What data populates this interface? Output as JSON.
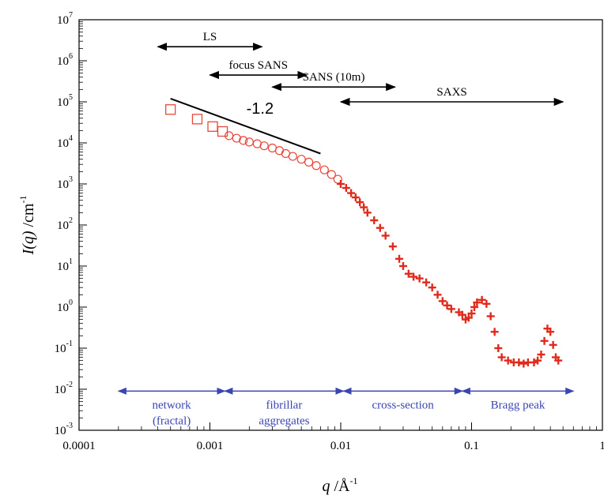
{
  "chart_data": {
    "type": "scatter",
    "xscale": "log",
    "yscale": "log",
    "xlim": [
      0.0001,
      1
    ],
    "ylim": [
      0.001,
      10000000
    ],
    "x_ticks": [
      {
        "value": 0.0001,
        "label": "0.0001"
      },
      {
        "value": 0.001,
        "label": "0.001"
      },
      {
        "value": 0.01,
        "label": "0.01"
      },
      {
        "value": 0.1,
        "label": "0.1"
      },
      {
        "value": 1,
        "label": "1"
      }
    ],
    "y_ticks": [
      {
        "value": 0.001,
        "base": "10",
        "exp": "-3"
      },
      {
        "value": 0.01,
        "base": "10",
        "exp": "-2"
      },
      {
        "value": 0.1,
        "base": "10",
        "exp": "-1"
      },
      {
        "value": 1,
        "base": "10",
        "exp": "0"
      },
      {
        "value": 10,
        "base": "10",
        "exp": "1"
      },
      {
        "value": 100,
        "base": "10",
        "exp": "2"
      },
      {
        "value": 1000,
        "base": "10",
        "exp": "3"
      },
      {
        "value": 10000,
        "base": "10",
        "exp": "4"
      },
      {
        "value": 100000,
        "base": "10",
        "exp": "5"
      },
      {
        "value": 1000000,
        "base": "10",
        "exp": "6"
      },
      {
        "value": 10000000,
        "base": "10",
        "exp": "7"
      }
    ],
    "xlabel": {
      "main": "q",
      "unit": " /Å",
      "exp": "-1"
    },
    "ylabel": {
      "main": "I(q)",
      "unit": " /cm",
      "exp": "-1"
    },
    "series": [
      {
        "marker": "square",
        "color": "#e8483c",
        "points": [
          [
            0.0005,
            65000
          ],
          [
            0.0008,
            38000
          ],
          [
            0.00105,
            25000
          ],
          [
            0.00125,
            19000
          ]
        ]
      },
      {
        "marker": "circle",
        "color": "#e8483c",
        "points": [
          [
            0.0014,
            15000
          ],
          [
            0.0016,
            13000
          ],
          [
            0.0018,
            11500
          ],
          [
            0.002,
            10500
          ],
          [
            0.0023,
            9500
          ],
          [
            0.0026,
            8500
          ],
          [
            0.003,
            7500
          ],
          [
            0.0034,
            6500
          ],
          [
            0.0038,
            5500
          ],
          [
            0.0043,
            4700
          ],
          [
            0.005,
            4000
          ],
          [
            0.0057,
            3400
          ],
          [
            0.0065,
            2800
          ],
          [
            0.0075,
            2200
          ],
          [
            0.0085,
            1700
          ],
          [
            0.0095,
            1300
          ]
        ]
      },
      {
        "marker": "cross",
        "color": "#e02a1c",
        "points": [
          [
            0.01,
            1000
          ],
          [
            0.011,
            800
          ],
          [
            0.012,
            600
          ],
          [
            0.013,
            470
          ],
          [
            0.014,
            360
          ],
          [
            0.015,
            270
          ],
          [
            0.016,
            200
          ],
          [
            0.018,
            130
          ],
          [
            0.02,
            85
          ],
          [
            0.022,
            55
          ],
          [
            0.025,
            30
          ],
          [
            0.028,
            15
          ],
          [
            0.03,
            10
          ],
          [
            0.033,
            6.5
          ],
          [
            0.036,
            5.5
          ],
          [
            0.04,
            5
          ],
          [
            0.045,
            4
          ],
          [
            0.05,
            3
          ],
          [
            0.055,
            2
          ],
          [
            0.06,
            1.4
          ],
          [
            0.065,
            1.1
          ],
          [
            0.07,
            0.9
          ],
          [
            0.08,
            0.75
          ],
          [
            0.085,
            0.65
          ],
          [
            0.09,
            0.5
          ],
          [
            0.095,
            0.55
          ],
          [
            0.1,
            0.7
          ],
          [
            0.105,
            1.0
          ],
          [
            0.11,
            1.3
          ],
          [
            0.12,
            1.5
          ],
          [
            0.13,
            1.2
          ],
          [
            0.14,
            0.6
          ],
          [
            0.15,
            0.25
          ],
          [
            0.16,
            0.1
          ],
          [
            0.17,
            0.06
          ],
          [
            0.19,
            0.05
          ],
          [
            0.21,
            0.045
          ],
          [
            0.23,
            0.045
          ],
          [
            0.25,
            0.042
          ],
          [
            0.27,
            0.045
          ],
          [
            0.3,
            0.045
          ],
          [
            0.32,
            0.05
          ],
          [
            0.34,
            0.07
          ],
          [
            0.36,
            0.15
          ],
          [
            0.38,
            0.3
          ],
          [
            0.4,
            0.25
          ],
          [
            0.42,
            0.12
          ],
          [
            0.44,
            0.06
          ],
          [
            0.46,
            0.05
          ]
        ]
      }
    ],
    "slope_line": {
      "from": [
        0.0005,
        120000
      ],
      "to": [
        0.007,
        5500
      ],
      "label": "-1.2",
      "label_at": [
        0.0019,
        51000
      ]
    },
    "technique_ranges": [
      {
        "label": "LS",
        "from": 0.0004,
        "to": 0.0025,
        "y": 2200000
      },
      {
        "label": "focus SANS",
        "from": 0.001,
        "to": 0.0055,
        "y": 450000
      },
      {
        "label": "SANS (10m)",
        "from": 0.003,
        "to": 0.026,
        "y": 230000
      },
      {
        "label": "SAXS",
        "from": 0.01,
        "to": 0.5,
        "y": 100000
      }
    ],
    "regions": [
      {
        "label": "network",
        "label2": "(fractal)",
        "from": 0.0002,
        "to": 0.0013
      },
      {
        "label": "fibrillar",
        "label2": "aggregates",
        "from": 0.0013,
        "to": 0.0105
      },
      {
        "label": "cross-section",
        "label2": "",
        "from": 0.0105,
        "to": 0.085
      },
      {
        "label": "Bragg peak",
        "label2": "",
        "from": 0.085,
        "to": 0.6
      }
    ],
    "region_arrow_y": 0.009
  }
}
